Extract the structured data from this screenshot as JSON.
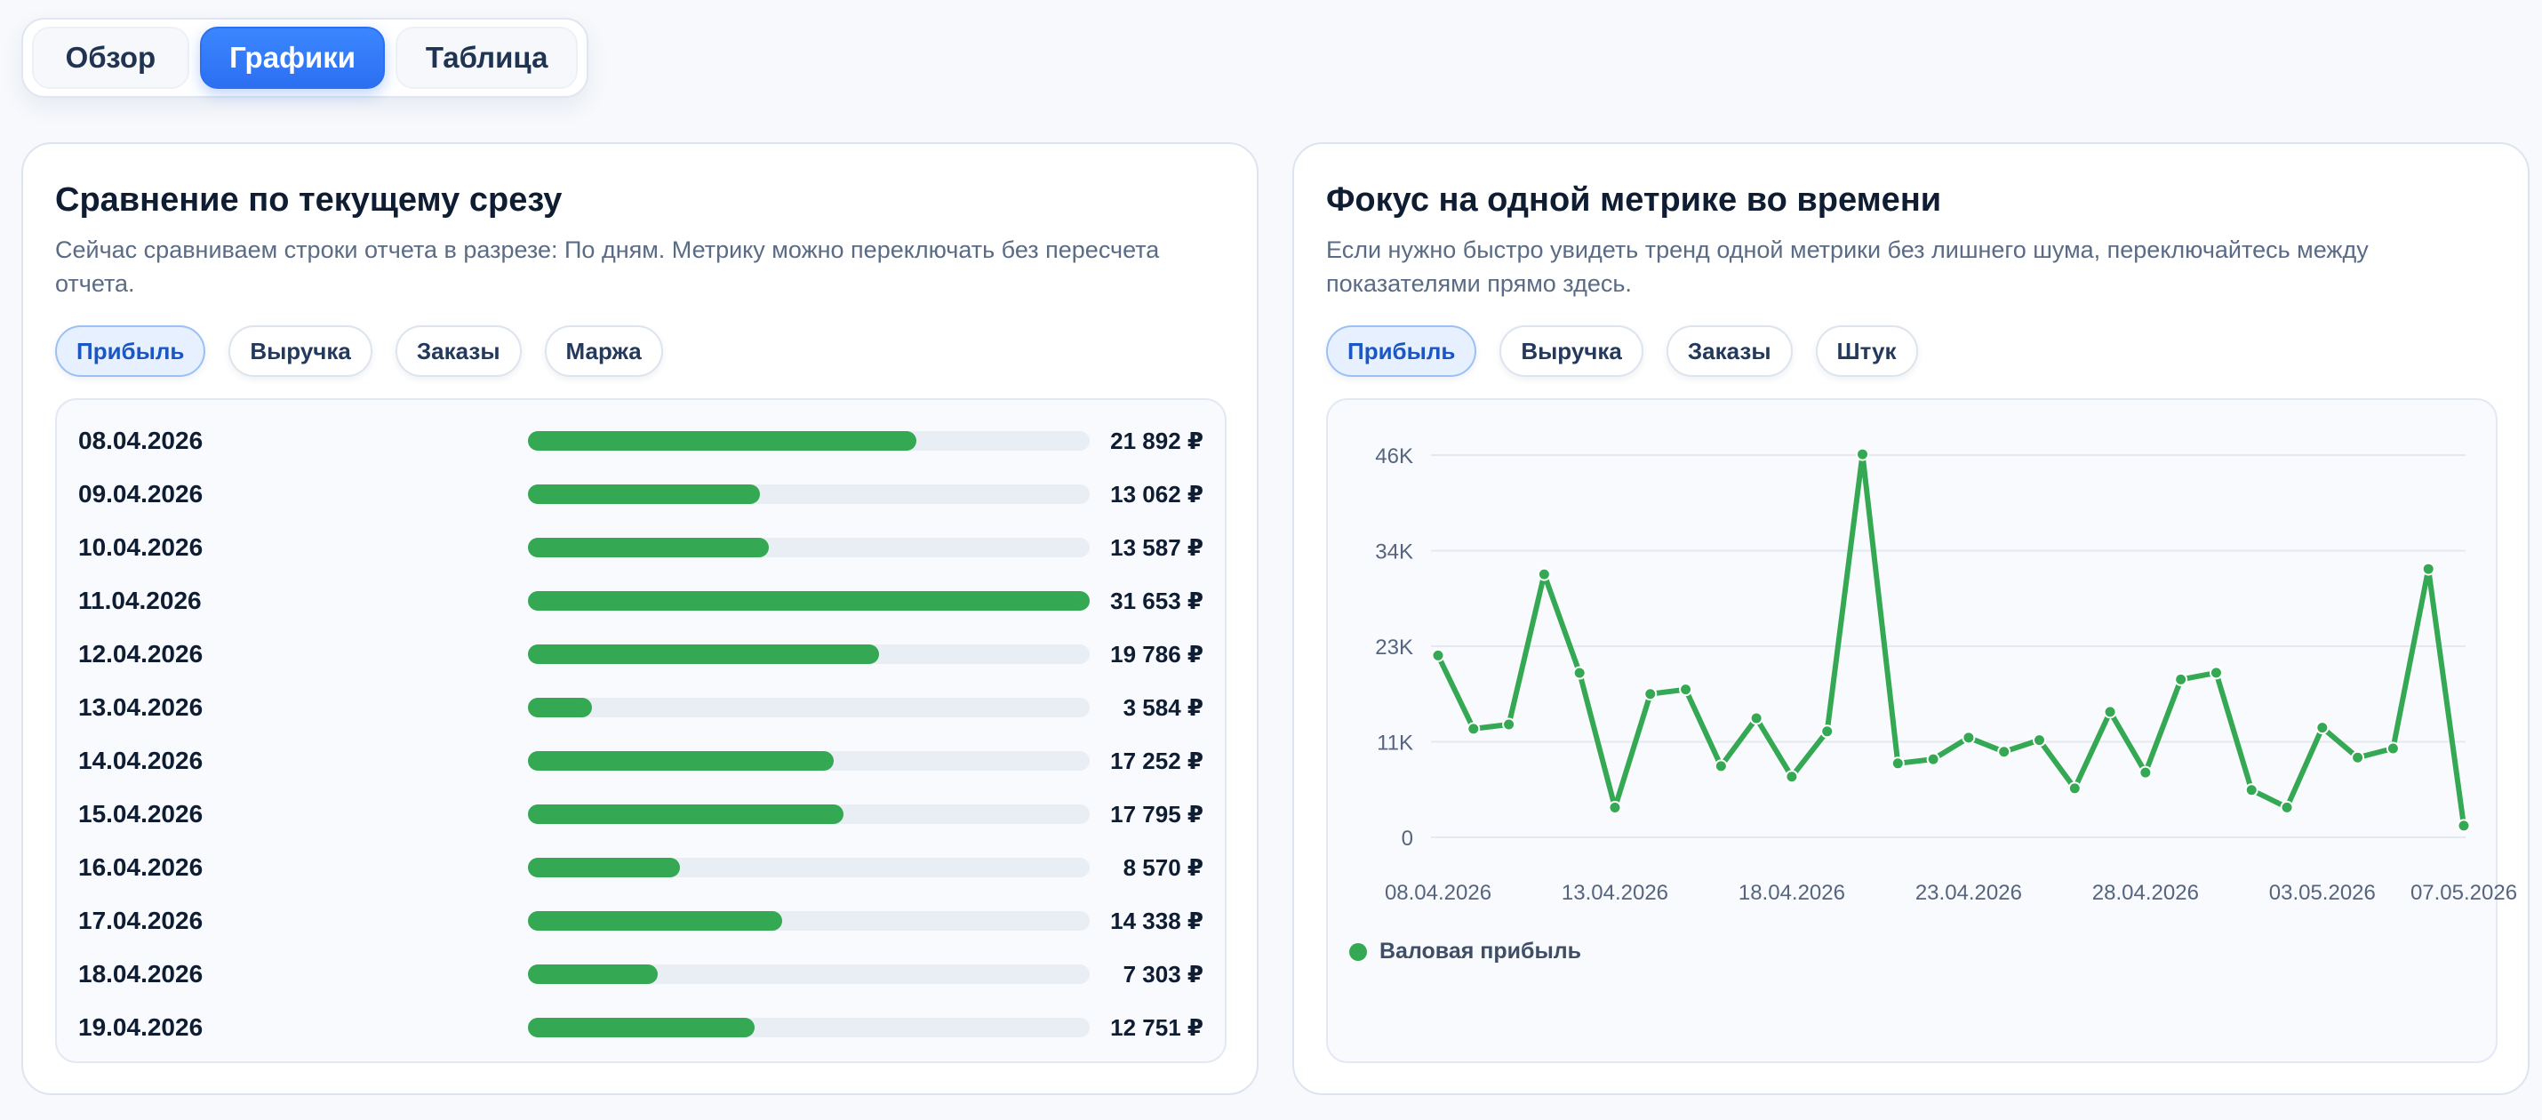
{
  "tabs": [
    {
      "label": "Обзор",
      "active": false
    },
    {
      "label": "Графики",
      "active": true
    },
    {
      "label": "Таблица",
      "active": false
    }
  ],
  "left_card": {
    "title": "Сравнение по текущему срезу",
    "description": "Сейчас сравниваем строки отчета в разрезе: По дням. Метрику можно переключать без пересчета отчета.",
    "metric_pills": [
      {
        "label": "Прибыль",
        "active": true
      },
      {
        "label": "Выручка",
        "active": false
      },
      {
        "label": "Заказы",
        "active": false
      },
      {
        "label": "Маржа",
        "active": false
      }
    ],
    "rows": [
      {
        "date": "08.04.2026",
        "value": 21892,
        "value_label": "21 892 ₽"
      },
      {
        "date": "09.04.2026",
        "value": 13062,
        "value_label": "13 062 ₽"
      },
      {
        "date": "10.04.2026",
        "value": 13587,
        "value_label": "13 587 ₽"
      },
      {
        "date": "11.04.2026",
        "value": 31653,
        "value_label": "31 653 ₽"
      },
      {
        "date": "12.04.2026",
        "value": 19786,
        "value_label": "19 786 ₽"
      },
      {
        "date": "13.04.2026",
        "value": 3584,
        "value_label": "3 584 ₽"
      },
      {
        "date": "14.04.2026",
        "value": 17252,
        "value_label": "17 252 ₽"
      },
      {
        "date": "15.04.2026",
        "value": 17795,
        "value_label": "17 795 ₽"
      },
      {
        "date": "16.04.2026",
        "value": 8570,
        "value_label": "8 570 ₽"
      },
      {
        "date": "17.04.2026",
        "value": 14338,
        "value_label": "14 338 ₽"
      },
      {
        "date": "18.04.2026",
        "value": 7303,
        "value_label": "7 303 ₽"
      },
      {
        "date": "19.04.2026",
        "value": 12751,
        "value_label": "12 751 ₽"
      }
    ],
    "bar_color": "#34a853"
  },
  "right_card": {
    "title": "Фокус на одной метрике во времени",
    "description": "Если нужно быстро увидеть тренд одной метрики без лишнего шума, переключайтесь между показателями прямо здесь.",
    "metric_pills": [
      {
        "label": "Прибыль",
        "active": true
      },
      {
        "label": "Выручка",
        "active": false
      },
      {
        "label": "Заказы",
        "active": false
      },
      {
        "label": "Штук",
        "active": false
      }
    ],
    "legend_label": "Валовая прибыль"
  },
  "chart_data": {
    "type": "line",
    "title": "",
    "xlabel": "",
    "ylabel": "",
    "x": [
      "08.04.2026",
      "09.04.2026",
      "10.04.2026",
      "11.04.2026",
      "12.04.2026",
      "13.04.2026",
      "14.04.2026",
      "15.04.2026",
      "16.04.2026",
      "17.04.2026",
      "18.04.2026",
      "19.04.2026",
      "20.04.2026",
      "21.04.2026",
      "22.04.2026",
      "23.04.2026",
      "24.04.2026",
      "25.04.2026",
      "26.04.2026",
      "27.04.2026",
      "28.04.2026",
      "29.04.2026",
      "30.04.2026",
      "01.05.2026",
      "02.05.2026",
      "03.05.2026",
      "04.05.2026",
      "05.05.2026",
      "06.05.2026",
      "07.05.2026"
    ],
    "x_tick_labels": [
      "08.04.2026",
      "13.04.2026",
      "18.04.2026",
      "23.04.2026",
      "28.04.2026",
      "03.05.2026",
      "07.05.2026"
    ],
    "y_tick_labels": [
      "46K",
      "34K",
      "23K",
      "11K",
      "0"
    ],
    "y_ticks": [
      46000,
      34500,
      23000,
      11500,
      0
    ],
    "ylim": [
      0,
      46000
    ],
    "grid": true,
    "legend": "bottom-left",
    "series": [
      {
        "name": "Валовая прибыль",
        "color": "#34a853",
        "values": [
          21892,
          13062,
          13587,
          31653,
          19786,
          3584,
          17252,
          17795,
          8570,
          14338,
          7303,
          12751,
          46100,
          8900,
          9400,
          12000,
          10300,
          11700,
          5900,
          15100,
          7800,
          19000,
          19800,
          5700,
          3600,
          13200,
          9600,
          10700,
          32300,
          1400
        ]
      }
    ]
  }
}
